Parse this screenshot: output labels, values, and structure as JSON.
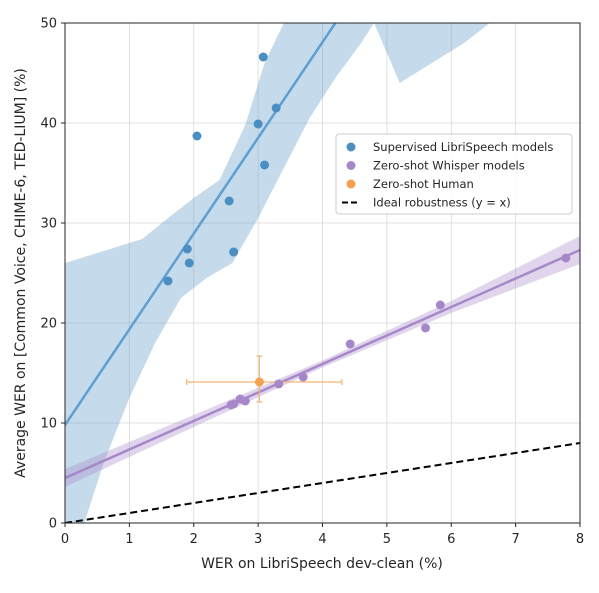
{
  "chart_data": {
    "type": "scatter",
    "xlabel": "WER on LibriSpeech dev-clean (%)",
    "ylabel": "Average WER on [Common Voice, CHIME-6, TED-LIUM] (%)",
    "xlim": [
      0,
      8
    ],
    "ylim": [
      0,
      50
    ],
    "xticks": [
      0,
      1,
      2,
      3,
      4,
      5,
      6,
      7,
      8
    ],
    "yticks": [
      0,
      10,
      20,
      30,
      40,
      50
    ],
    "grid": true,
    "legend_position": "center-right",
    "series": [
      {
        "name": "Supervised LibriSpeech models",
        "color": "#4a8ec2",
        "points": [
          {
            "x": 1.6,
            "y": 24.2
          },
          {
            "x": 1.9,
            "y": 27.4
          },
          {
            "x": 1.93,
            "y": 26.0
          },
          {
            "x": 2.05,
            "y": 38.7
          },
          {
            "x": 2.55,
            "y": 32.2
          },
          {
            "x": 2.62,
            "y": 27.1
          },
          {
            "x": 3.0,
            "y": 39.9
          },
          {
            "x": 3.08,
            "y": 46.6
          },
          {
            "x": 3.1,
            "y": 35.8
          },
          {
            "x": 3.28,
            "y": 41.5
          }
        ],
        "fit": {
          "x": [
            0,
            4.2
          ],
          "y": [
            9.8,
            50
          ]
        },
        "band_upper": [
          [
            0,
            26
          ],
          [
            0.4,
            26.8
          ],
          [
            0.8,
            27.6
          ],
          [
            1.2,
            28.4
          ],
          [
            1.6,
            30.5
          ],
          [
            2.0,
            32.5
          ],
          [
            2.4,
            34.3
          ],
          [
            2.8,
            39.8
          ],
          [
            3.1,
            46
          ],
          [
            3.4,
            50
          ],
          [
            4.8,
            50
          ],
          [
            5.2,
            44
          ],
          [
            5.7,
            46
          ],
          [
            6.2,
            48
          ],
          [
            6.6,
            50
          ]
        ],
        "band_lower": [
          [
            0,
            0
          ],
          [
            0.3,
            0
          ],
          [
            0.6,
            6
          ],
          [
            1.0,
            12.5
          ],
          [
            1.4,
            18
          ],
          [
            1.8,
            22.5
          ],
          [
            2.2,
            24.5
          ],
          [
            2.6,
            26
          ],
          [
            3.0,
            30.5
          ],
          [
            3.4,
            35.5
          ],
          [
            3.8,
            40.5
          ],
          [
            4.2,
            44.5
          ],
          [
            4.6,
            48
          ],
          [
            4.8,
            50
          ]
        ]
      },
      {
        "name": "Zero-shot Whisper models",
        "color": "#a688c9",
        "points": [
          {
            "x": 2.58,
            "y": 11.8
          },
          {
            "x": 2.62,
            "y": 11.9
          },
          {
            "x": 2.72,
            "y": 12.4
          },
          {
            "x": 2.8,
            "y": 12.2
          },
          {
            "x": 3.32,
            "y": 13.9
          },
          {
            "x": 3.7,
            "y": 14.6
          },
          {
            "x": 4.43,
            "y": 17.9
          },
          {
            "x": 5.6,
            "y": 19.5
          },
          {
            "x": 5.83,
            "y": 21.8
          },
          {
            "x": 7.78,
            "y": 26.5
          }
        ],
        "fit": {
          "x": [
            0,
            8
          ],
          "y": [
            4.5,
            27.3
          ]
        },
        "band_halfwidth": [
          0.9,
          0.6,
          0.35,
          0.6,
          1.4
        ]
      },
      {
        "name": "Zero-shot Human",
        "color": "#f5a04d",
        "points": [
          {
            "x": 3.02,
            "y": 14.1,
            "xerr": [
              1.13,
              1.28
            ],
            "yerr": [
              2.0,
              2.6
            ]
          }
        ]
      },
      {
        "name": "Ideal robustness (y = x)",
        "color": "#000000",
        "line": {
          "x": [
            0,
            8
          ],
          "y": [
            0,
            8
          ]
        },
        "dashed": true
      }
    ]
  }
}
